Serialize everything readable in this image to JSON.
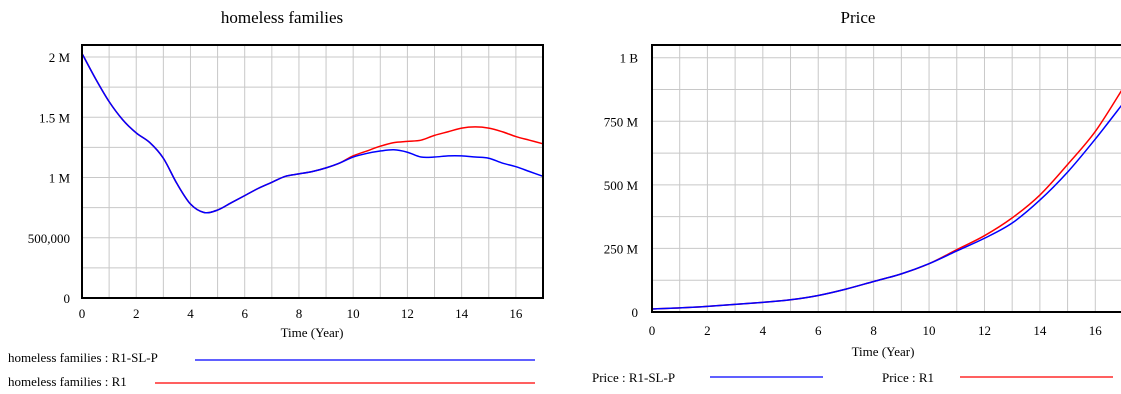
{
  "chart_data": [
    {
      "type": "line",
      "title": "homeless families",
      "xlabel": "Time (Year)",
      "ylabel": "",
      "xlim": [
        0,
        17
      ],
      "ylim": [
        0,
        2100000
      ],
      "x_ticks": [
        0,
        2,
        4,
        6,
        8,
        10,
        12,
        14,
        16
      ],
      "y_ticks": [
        {
          "value": 0,
          "label": "0"
        },
        {
          "value": 500000,
          "label": "500,000"
        },
        {
          "value": 1000000,
          "label": "1 M"
        },
        {
          "value": 1500000,
          "label": "1.5 M"
        },
        {
          "value": 2000000,
          "label": "2 M"
        }
      ],
      "grid": true,
      "legend_position": "bottom-left",
      "series": [
        {
          "name": "homeless families : R1-SL-P",
          "color": "#0000ff",
          "x": [
            0,
            0.5,
            1,
            1.5,
            2,
            2.5,
            3,
            3.5,
            4,
            4.5,
            5,
            5.5,
            6,
            6.5,
            7,
            7.5,
            8,
            8.5,
            9,
            9.5,
            10,
            10.5,
            11,
            11.5,
            12,
            12.5,
            13,
            13.5,
            14,
            14.5,
            15,
            15.5,
            16,
            16.5,
            17
          ],
          "y": [
            2030000,
            1820000,
            1630000,
            1480000,
            1370000,
            1290000,
            1160000,
            950000,
            780000,
            710000,
            730000,
            790000,
            850000,
            910000,
            960000,
            1010000,
            1030000,
            1050000,
            1080000,
            1120000,
            1170000,
            1200000,
            1220000,
            1230000,
            1210000,
            1170000,
            1170000,
            1180000,
            1180000,
            1170000,
            1160000,
            1120000,
            1090000,
            1050000,
            1010000
          ]
        },
        {
          "name": "homeless families : R1",
          "color": "#ff0000",
          "x": [
            0,
            0.5,
            1,
            1.5,
            2,
            2.5,
            3,
            3.5,
            4,
            4.5,
            5,
            5.5,
            6,
            6.5,
            7,
            7.5,
            8,
            8.5,
            9,
            9.5,
            10,
            10.5,
            11,
            11.5,
            12,
            12.5,
            13,
            13.5,
            14,
            14.5,
            15,
            15.5,
            16,
            16.5,
            17
          ],
          "y": [
            2030000,
            1820000,
            1630000,
            1480000,
            1370000,
            1290000,
            1160000,
            950000,
            780000,
            710000,
            730000,
            790000,
            850000,
            910000,
            960000,
            1010000,
            1030000,
            1050000,
            1080000,
            1120000,
            1180000,
            1220000,
            1260000,
            1290000,
            1300000,
            1310000,
            1350000,
            1380000,
            1410000,
            1420000,
            1410000,
            1380000,
            1340000,
            1310000,
            1280000
          ]
        }
      ]
    },
    {
      "type": "line",
      "title": "Price",
      "xlabel": "Time (Year)",
      "ylabel": "",
      "xlim": [
        0,
        17
      ],
      "ylim": [
        0,
        1050000000
      ],
      "x_ticks": [
        0,
        2,
        4,
        6,
        8,
        10,
        12,
        14,
        16
      ],
      "y_ticks": [
        {
          "value": 0,
          "label": "0"
        },
        {
          "value": 250000000,
          "label": "250 M"
        },
        {
          "value": 500000000,
          "label": "500 M"
        },
        {
          "value": 750000000,
          "label": "750 M"
        },
        {
          "value": 1000000000,
          "label": "1 B"
        }
      ],
      "grid": true,
      "legend_position": "bottom",
      "series": [
        {
          "name": "Price : R1-SL-P",
          "color": "#0000ff",
          "x": [
            0,
            1,
            2,
            3,
            4,
            5,
            6,
            7,
            8,
            9,
            10,
            11,
            12,
            13,
            14,
            15,
            16,
            17
          ],
          "y": [
            12000000,
            16000000,
            22000000,
            30000000,
            38000000,
            48000000,
            65000000,
            90000000,
            120000000,
            150000000,
            190000000,
            240000000,
            290000000,
            350000000,
            440000000,
            550000000,
            680000000,
            820000000
          ]
        },
        {
          "name": "Price : R1",
          "color": "#ff0000",
          "x": [
            0,
            1,
            2,
            3,
            4,
            5,
            6,
            7,
            8,
            9,
            10,
            11,
            12,
            13,
            14,
            15,
            16,
            17
          ],
          "y": [
            12000000,
            16000000,
            22000000,
            30000000,
            38000000,
            48000000,
            65000000,
            90000000,
            120000000,
            150000000,
            190000000,
            245000000,
            300000000,
            370000000,
            460000000,
            580000000,
            710000000,
            880000000
          ]
        }
      ]
    }
  ]
}
